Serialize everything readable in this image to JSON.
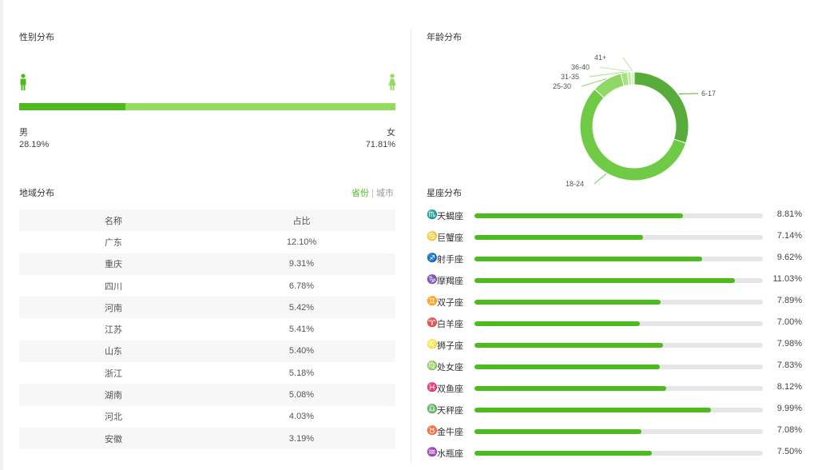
{
  "gender": {
    "title": "性别分布",
    "male_label": "男",
    "male_pct": "28.19%",
    "male_fraction": 0.2819,
    "female_label": "女",
    "female_pct": "71.81%",
    "colors": {
      "male": "#4cbb1e",
      "female": "#93dc5e"
    }
  },
  "region": {
    "title": "地域分布",
    "toggle_province": "省份",
    "toggle_city": "城市",
    "toggle_sep": "|",
    "columns": [
      "名称",
      "占比"
    ],
    "rows": [
      {
        "name": "广东",
        "pct": "12.10%"
      },
      {
        "name": "重庆",
        "pct": "9.31%"
      },
      {
        "name": "四川",
        "pct": "6.78%"
      },
      {
        "name": "河南",
        "pct": "5.42%"
      },
      {
        "name": "江苏",
        "pct": "5.41%"
      },
      {
        "name": "山东",
        "pct": "5.40%"
      },
      {
        "name": "浙江",
        "pct": "5.18%"
      },
      {
        "name": "湖南",
        "pct": "5.08%"
      },
      {
        "name": "河北",
        "pct": "4.03%"
      },
      {
        "name": "安徽",
        "pct": "3.19%"
      }
    ]
  },
  "age": {
    "title": "年龄分布"
  },
  "chart_data": {
    "type": "pie",
    "categories": [
      "6-17",
      "18-24",
      "25-30",
      "31-35",
      "36-40",
      "41+"
    ],
    "values": [
      30,
      57,
      9,
      2,
      1,
      1
    ],
    "colors": [
      "#58ad3a",
      "#6fcb45",
      "#8ed864",
      "#a6e27f",
      "#bfea9f",
      "#d6f2c0"
    ]
  },
  "constellation": {
    "title": "星座分布",
    "items": [
      {
        "symbol": "♏",
        "name": "天蝎座",
        "pct": "8.81%",
        "value": 8.81
      },
      {
        "symbol": "♋",
        "name": "巨蟹座",
        "pct": "7.14%",
        "value": 7.14
      },
      {
        "symbol": "♐",
        "name": "射手座",
        "pct": "9.62%",
        "value": 9.62
      },
      {
        "symbol": "♑",
        "name": "摩羯座",
        "pct": "11.03%",
        "value": 11.03
      },
      {
        "symbol": "♊",
        "name": "双子座",
        "pct": "7.89%",
        "value": 7.89
      },
      {
        "symbol": "♈",
        "name": "白羊座",
        "pct": "7.00%",
        "value": 7.0
      },
      {
        "symbol": "♌",
        "name": "狮子座",
        "pct": "7.98%",
        "value": 7.98
      },
      {
        "symbol": "♍",
        "name": "处女座",
        "pct": "7.83%",
        "value": 7.83
      },
      {
        "symbol": "♓",
        "name": "双鱼座",
        "pct": "8.12%",
        "value": 8.12
      },
      {
        "symbol": "♎",
        "name": "天秤座",
        "pct": "9.99%",
        "value": 9.99
      },
      {
        "symbol": "♉",
        "name": "金牛座",
        "pct": "7.08%",
        "value": 7.08
      },
      {
        "symbol": "♒",
        "name": "水瓶座",
        "pct": "7.50%",
        "value": 7.5
      }
    ],
    "scale_max": 12.2
  }
}
